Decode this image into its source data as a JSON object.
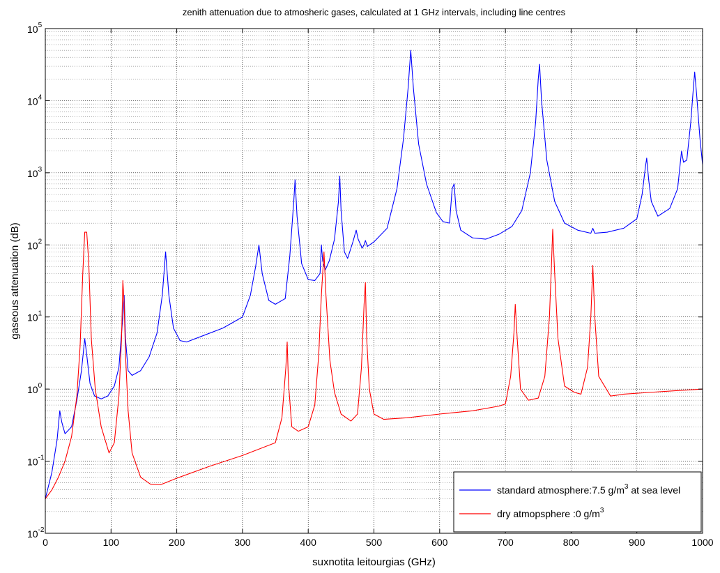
{
  "chart_data": {
    "type": "line",
    "title": "zenith attenuation due to atmosheric gases, calculated at 1 GHz intervals, including line centres",
    "xlabel": "suxnotita leitourgias (GHz)",
    "ylabel": "gaseous attenuation (dB)",
    "xlim": [
      0,
      1000
    ],
    "ylim": [
      0.01,
      100000
    ],
    "yscale": "log",
    "grid": true,
    "minor_grid": true,
    "legend_position": "bottom-right",
    "x_ticks": [
      "0",
      "100",
      "200",
      "300",
      "400",
      "500",
      "600",
      "700",
      "800",
      "900",
      "1000"
    ],
    "y_ticks": [
      {
        "base": "10",
        "exp": "-2"
      },
      {
        "base": "10",
        "exp": "-1"
      },
      {
        "base": "10",
        "exp": "0"
      },
      {
        "base": "10",
        "exp": "1"
      },
      {
        "base": "10",
        "exp": "2"
      },
      {
        "base": "10",
        "exp": "3"
      },
      {
        "base": "10",
        "exp": "4"
      },
      {
        "base": "10",
        "exp": "5"
      }
    ],
    "series": [
      {
        "name": "standard atmosphere:7.5 g/m3 at sea level",
        "legend_parts": [
          "standard atmosphere:7.5 g/m",
          "3",
          " at sea level"
        ],
        "color": "#0000ff",
        "points": [
          [
            0,
            0.03
          ],
          [
            10,
            0.07
          ],
          [
            18,
            0.2
          ],
          [
            22,
            0.5
          ],
          [
            25,
            0.35
          ],
          [
            30,
            0.24
          ],
          [
            40,
            0.3
          ],
          [
            48,
            0.7
          ],
          [
            55,
            1.8
          ],
          [
            60,
            5
          ],
          [
            63,
            3
          ],
          [
            68,
            1.2
          ],
          [
            75,
            0.8
          ],
          [
            85,
            0.73
          ],
          [
            95,
            0.8
          ],
          [
            105,
            1.1
          ],
          [
            112,
            2
          ],
          [
            116,
            6
          ],
          [
            118,
            10
          ],
          [
            120,
            20
          ],
          [
            122,
            5
          ],
          [
            126,
            1.8
          ],
          [
            132,
            1.55
          ],
          [
            145,
            1.8
          ],
          [
            158,
            2.8
          ],
          [
            170,
            6
          ],
          [
            178,
            20
          ],
          [
            183,
            80
          ],
          [
            188,
            20
          ],
          [
            195,
            7
          ],
          [
            205,
            4.7
          ],
          [
            215,
            4.5
          ],
          [
            240,
            5.5
          ],
          [
            270,
            7
          ],
          [
            300,
            10
          ],
          [
            312,
            20
          ],
          [
            320,
            50
          ],
          [
            325,
            100
          ],
          [
            330,
            40
          ],
          [
            340,
            17
          ],
          [
            350,
            15
          ],
          [
            365,
            18
          ],
          [
            372,
            70
          ],
          [
            378,
            400
          ],
          [
            380,
            800
          ],
          [
            383,
            250
          ],
          [
            390,
            55
          ],
          [
            400,
            33
          ],
          [
            410,
            32
          ],
          [
            418,
            40
          ],
          [
            420,
            100
          ],
          [
            422,
            60
          ],
          [
            426,
            45
          ],
          [
            432,
            60
          ],
          [
            440,
            120
          ],
          [
            446,
            400
          ],
          [
            448,
            900
          ],
          [
            450,
            300
          ],
          [
            455,
            80
          ],
          [
            460,
            65
          ],
          [
            468,
            110
          ],
          [
            473,
            160
          ],
          [
            476,
            120
          ],
          [
            482,
            90
          ],
          [
            485,
            100
          ],
          [
            487,
            115
          ],
          [
            490,
            95
          ],
          [
            500,
            110
          ],
          [
            520,
            170
          ],
          [
            535,
            600
          ],
          [
            545,
            3000
          ],
          [
            552,
            15000
          ],
          [
            556,
            50000
          ],
          [
            560,
            15000
          ],
          [
            568,
            2500
          ],
          [
            580,
            700
          ],
          [
            595,
            280
          ],
          [
            605,
            210
          ],
          [
            615,
            200
          ],
          [
            619,
            600
          ],
          [
            622,
            700
          ],
          [
            625,
            300
          ],
          [
            632,
            160
          ],
          [
            650,
            125
          ],
          [
            670,
            120
          ],
          [
            690,
            140
          ],
          [
            710,
            180
          ],
          [
            725,
            300
          ],
          [
            738,
            1000
          ],
          [
            746,
            5000
          ],
          [
            750,
            20000
          ],
          [
            752,
            32000
          ],
          [
            755,
            10000
          ],
          [
            763,
            1500
          ],
          [
            775,
            400
          ],
          [
            790,
            200
          ],
          [
            810,
            160
          ],
          [
            830,
            145
          ],
          [
            833,
            170
          ],
          [
            836,
            145
          ],
          [
            855,
            150
          ],
          [
            880,
            170
          ],
          [
            900,
            230
          ],
          [
            908,
            500
          ],
          [
            913,
            1200
          ],
          [
            915,
            1600
          ],
          [
            918,
            800
          ],
          [
            922,
            400
          ],
          [
            932,
            250
          ],
          [
            950,
            320
          ],
          [
            962,
            600
          ],
          [
            968,
            2000
          ],
          [
            971,
            1400
          ],
          [
            976,
            1500
          ],
          [
            982,
            5000
          ],
          [
            986,
            15000
          ],
          [
            988,
            25000
          ],
          [
            991,
            12000
          ],
          [
            996,
            3000
          ],
          [
            1000,
            1300
          ]
        ]
      },
      {
        "name": "dry atmopsphere :0 g/m3",
        "legend_parts": [
          "dry atmopsphere :0 g/m",
          "3",
          ""
        ],
        "color": "#ff0000",
        "points": [
          [
            0,
            0.03
          ],
          [
            10,
            0.04
          ],
          [
            20,
            0.06
          ],
          [
            30,
            0.1
          ],
          [
            40,
            0.22
          ],
          [
            48,
            0.8
          ],
          [
            53,
            4
          ],
          [
            57,
            40
          ],
          [
            60,
            150
          ],
          [
            63,
            150
          ],
          [
            66,
            60
          ],
          [
            70,
            5
          ],
          [
            76,
            1
          ],
          [
            85,
            0.3
          ],
          [
            97,
            0.13
          ],
          [
            105,
            0.18
          ],
          [
            112,
            0.8
          ],
          [
            116,
            5
          ],
          [
            118,
            32
          ],
          [
            120,
            15
          ],
          [
            122,
            3
          ],
          [
            126,
            0.5
          ],
          [
            132,
            0.13
          ],
          [
            145,
            0.06
          ],
          [
            160,
            0.048
          ],
          [
            175,
            0.047
          ],
          [
            200,
            0.058
          ],
          [
            250,
            0.085
          ],
          [
            300,
            0.12
          ],
          [
            350,
            0.18
          ],
          [
            360,
            0.4
          ],
          [
            366,
            2
          ],
          [
            368,
            4.5
          ],
          [
            370,
            1.2
          ],
          [
            375,
            0.3
          ],
          [
            385,
            0.26
          ],
          [
            400,
            0.3
          ],
          [
            410,
            0.6
          ],
          [
            416,
            3
          ],
          [
            420,
            20
          ],
          [
            424,
            80
          ],
          [
            427,
            20
          ],
          [
            433,
            2.5
          ],
          [
            440,
            0.9
          ],
          [
            450,
            0.45
          ],
          [
            465,
            0.36
          ],
          [
            475,
            0.45
          ],
          [
            481,
            2
          ],
          [
            485,
            15
          ],
          [
            487,
            30
          ],
          [
            489,
            5
          ],
          [
            493,
            1
          ],
          [
            500,
            0.45
          ],
          [
            515,
            0.38
          ],
          [
            550,
            0.4
          ],
          [
            600,
            0.45
          ],
          [
            650,
            0.5
          ],
          [
            690,
            0.58
          ],
          [
            700,
            0.62
          ],
          [
            708,
            1.5
          ],
          [
            713,
            6
          ],
          [
            715,
            15
          ],
          [
            718,
            5
          ],
          [
            723,
            1
          ],
          [
            735,
            0.7
          ],
          [
            750,
            0.75
          ],
          [
            760,
            1.5
          ],
          [
            767,
            10
          ],
          [
            770,
            50
          ],
          [
            772,
            165
          ],
          [
            775,
            40
          ],
          [
            780,
            5
          ],
          [
            790,
            1.1
          ],
          [
            805,
            0.9
          ],
          [
            815,
            0.85
          ],
          [
            825,
            2
          ],
          [
            830,
            10
          ],
          [
            833,
            52
          ],
          [
            836,
            10
          ],
          [
            842,
            1.5
          ],
          [
            860,
            0.8
          ],
          [
            880,
            0.85
          ],
          [
            920,
            0.9
          ],
          [
            960,
            0.95
          ],
          [
            1000,
            1.0
          ]
        ]
      }
    ]
  }
}
